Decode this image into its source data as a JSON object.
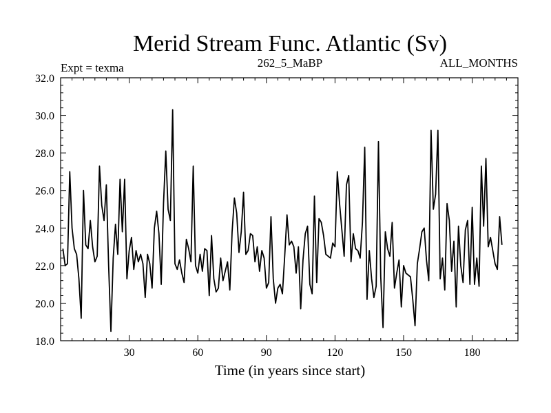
{
  "chart_data": {
    "type": "line",
    "title": "Merid Stream Func. Atlantic (Sv)",
    "subtitle_left": "Expt = texma",
    "subtitle_center": "262_5_MaBP",
    "subtitle_right": "ALL_MONTHS",
    "xlabel": "Time (in years since start)",
    "ylabel": "",
    "xlim": [
      0,
      200
    ],
    "ylim": [
      18.0,
      32.0
    ],
    "x_ticks": [
      30,
      60,
      90,
      120,
      150,
      180
    ],
    "x_tick_labels": [
      "30",
      "60",
      "90",
      "120",
      "150",
      "180"
    ],
    "y_ticks": [
      18,
      20,
      22,
      24,
      26,
      28,
      30,
      32
    ],
    "y_tick_labels": [
      "18.0",
      "20.0",
      "22.0",
      "24.0",
      "26.0",
      "28.0",
      "30.0",
      "32.0"
    ],
    "line_color": "#000000",
    "series": [
      {
        "name": "Merid Stream Func. Atlantic",
        "x_start": 1,
        "x_step": 1,
        "values": [
          22.9,
          22.0,
          22.1,
          27.0,
          24.0,
          22.9,
          22.6,
          21.3,
          19.2,
          26.0,
          23.1,
          22.9,
          24.4,
          23.0,
          22.2,
          22.5,
          27.3,
          25.2,
          24.4,
          26.3,
          22.0,
          18.5,
          22.4,
          24.2,
          22.6,
          26.6,
          23.8,
          26.6,
          21.3,
          22.8,
          23.5,
          21.8,
          22.8,
          22.2,
          22.6,
          22.1,
          20.3,
          22.6,
          22.1,
          20.8,
          24.0,
          24.9,
          23.7,
          21.0,
          25.3,
          28.1,
          25.0,
          24.4,
          30.3,
          22.1,
          21.8,
          22.3,
          21.6,
          21.1,
          23.4,
          22.9,
          22.2,
          27.3,
          22.0,
          21.6,
          22.6,
          21.7,
          22.9,
          22.8,
          20.4,
          23.6,
          21.3,
          20.6,
          20.8,
          22.4,
          21.2,
          21.7,
          22.2,
          20.7,
          23.8,
          25.6,
          24.8,
          22.7,
          23.8,
          25.9,
          22.6,
          22.8,
          23.7,
          23.6,
          22.2,
          23.0,
          21.7,
          22.8,
          22.4,
          20.8,
          21.1,
          24.6,
          21.3,
          20.0,
          20.8,
          21.0,
          20.5,
          22.5,
          24.7,
          23.1,
          23.3,
          23.0,
          21.6,
          23.0,
          19.7,
          22.3,
          23.7,
          24.1,
          21.0,
          20.5,
          25.7,
          21.1,
          24.5,
          24.3,
          23.6,
          22.6,
          22.5,
          22.4,
          23.2,
          23.0,
          27.0,
          25.3,
          23.9,
          22.5,
          26.3,
          26.8,
          22.2,
          23.7,
          22.9,
          22.8,
          22.4,
          24.3,
          28.3,
          20.2,
          22.8,
          21.3,
          20.3,
          20.9,
          28.6,
          21.4,
          18.7,
          23.8,
          22.9,
          22.5,
          24.3,
          20.8,
          21.6,
          22.3,
          19.8,
          22.0,
          21.6,
          21.5,
          21.4,
          20.2,
          18.8,
          22.1,
          22.9,
          23.8,
          24.0,
          22.3,
          21.2,
          29.2,
          25.0,
          25.8,
          29.2,
          21.3,
          22.4,
          20.7,
          25.3,
          24.4,
          21.7,
          23.3,
          19.8,
          24.1,
          22.0,
          21.1,
          23.9,
          24.4,
          21.0,
          25.1,
          21.0,
          22.4,
          20.9,
          27.3,
          24.1,
          27.7,
          23.0,
          23.5,
          22.8,
          22.1,
          21.8,
          24.6,
          23.1
        ]
      }
    ]
  }
}
